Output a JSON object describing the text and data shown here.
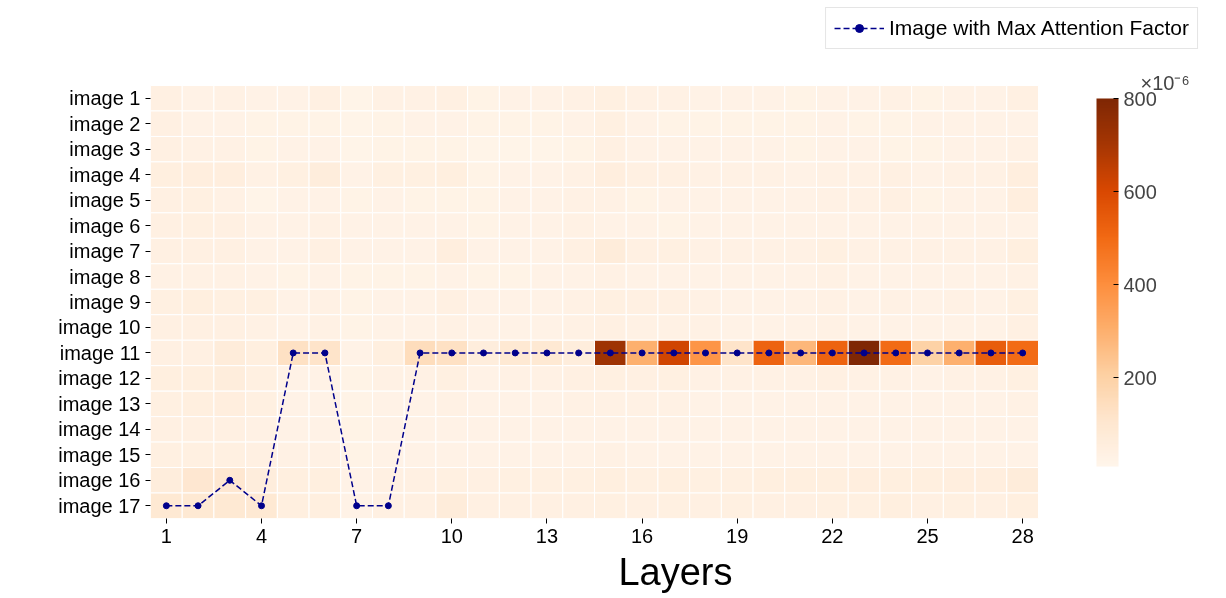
{
  "chart_data": {
    "type": "heatmap",
    "xlabel": "Layers",
    "clabel": "×10⁻⁶",
    "categories": [
      "1",
      null,
      null,
      "4",
      null,
      null,
      "7",
      null,
      null,
      "10",
      null,
      null,
      "13",
      null,
      null,
      "16",
      null,
      null,
      "19",
      null,
      null,
      "22",
      null,
      null,
      "25",
      null,
      null,
      "28"
    ],
    "y_categories": [
      "image 1",
      "image 2",
      "image 3",
      "image 4",
      "image 5",
      "image 6",
      "image 7",
      "image 8",
      "image 9",
      "image 10",
      "image 11",
      "image 12",
      "image 13",
      "image 14",
      "image 15",
      "image 16",
      "image 17"
    ],
    "cells": [
      [
        40,
        30,
        35,
        30,
        30,
        40,
        20,
        35,
        35,
        40,
        25,
        30,
        30,
        35,
        45,
        35,
        35,
        30,
        30,
        30,
        25,
        30,
        30,
        35,
        25,
        30,
        30,
        40
      ],
      [
        40,
        30,
        30,
        25,
        25,
        25,
        20,
        25,
        30,
        30,
        25,
        25,
        25,
        30,
        45,
        30,
        25,
        25,
        25,
        25,
        25,
        30,
        25,
        25,
        30,
        30,
        30,
        30
      ],
      [
        40,
        35,
        35,
        25,
        30,
        30,
        20,
        25,
        25,
        25,
        20,
        20,
        20,
        25,
        40,
        30,
        30,
        30,
        30,
        30,
        25,
        30,
        30,
        25,
        25,
        30,
        30,
        35
      ],
      [
        50,
        55,
        55,
        35,
        45,
        60,
        30,
        45,
        45,
        50,
        25,
        30,
        30,
        35,
        55,
        40,
        40,
        35,
        35,
        35,
        30,
        35,
        35,
        40,
        30,
        35,
        35,
        55
      ],
      [
        40,
        45,
        35,
        20,
        30,
        30,
        25,
        30,
        25,
        25,
        25,
        30,
        30,
        35,
        35,
        25,
        30,
        30,
        30,
        30,
        30,
        35,
        35,
        40,
        25,
        30,
        30,
        55
      ],
      [
        40,
        45,
        40,
        30,
        30,
        35,
        30,
        30,
        30,
        30,
        25,
        30,
        30,
        35,
        30,
        30,
        25,
        30,
        30,
        30,
        30,
        30,
        30,
        30,
        30,
        30,
        30,
        30
      ],
      [
        40,
        40,
        40,
        30,
        30,
        40,
        30,
        30,
        30,
        55,
        30,
        30,
        30,
        40,
        70,
        40,
        45,
        35,
        35,
        35,
        35,
        45,
        35,
        35,
        35,
        35,
        35,
        50
      ],
      [
        35,
        35,
        35,
        30,
        25,
        30,
        25,
        25,
        25,
        30,
        25,
        25,
        30,
        30,
        35,
        30,
        30,
        30,
        30,
        30,
        30,
        35,
        30,
        30,
        30,
        30,
        30,
        35
      ],
      [
        45,
        50,
        45,
        45,
        30,
        35,
        25,
        30,
        30,
        40,
        30,
        30,
        30,
        35,
        45,
        40,
        40,
        35,
        30,
        30,
        30,
        35,
        30,
        35,
        30,
        35,
        30,
        45
      ],
      [
        40,
        40,
        40,
        35,
        30,
        35,
        25,
        30,
        30,
        35,
        30,
        30,
        30,
        35,
        40,
        35,
        35,
        35,
        30,
        30,
        30,
        35,
        30,
        30,
        30,
        30,
        30,
        40
      ],
      [
        40,
        40,
        70,
        50,
        130,
        120,
        30,
        50,
        150,
        130,
        60,
        90,
        90,
        60,
        720,
        300,
        620,
        380,
        120,
        520,
        280,
        520,
        800,
        500,
        200,
        300,
        540,
        500
      ],
      [
        50,
        50,
        60,
        45,
        30,
        30,
        25,
        35,
        35,
        45,
        30,
        35,
        35,
        40,
        45,
        40,
        45,
        35,
        35,
        35,
        35,
        40,
        35,
        35,
        30,
        35,
        35,
        45
      ],
      [
        45,
        50,
        55,
        45,
        30,
        30,
        25,
        30,
        30,
        35,
        30,
        30,
        30,
        35,
        35,
        35,
        35,
        30,
        30,
        30,
        30,
        30,
        30,
        30,
        30,
        30,
        30,
        35
      ],
      [
        40,
        40,
        40,
        35,
        30,
        30,
        25,
        30,
        30,
        30,
        30,
        30,
        30,
        30,
        30,
        30,
        30,
        30,
        30,
        30,
        30,
        30,
        30,
        30,
        30,
        30,
        30,
        30
      ],
      [
        45,
        45,
        45,
        40,
        35,
        35,
        25,
        30,
        30,
        30,
        30,
        30,
        30,
        30,
        35,
        30,
        30,
        30,
        30,
        30,
        30,
        30,
        30,
        30,
        30,
        30,
        30,
        30
      ],
      [
        60,
        100,
        100,
        60,
        50,
        50,
        30,
        40,
        40,
        45,
        40,
        45,
        45,
        45,
        50,
        45,
        50,
        45,
        45,
        50,
        50,
        50,
        55,
        50,
        50,
        55,
        55,
        70
      ],
      [
        90,
        90,
        90,
        90,
        50,
        50,
        30,
        40,
        40,
        70,
        40,
        40,
        40,
        40,
        45,
        40,
        45,
        40,
        45,
        40,
        40,
        45,
        45,
        50,
        40,
        45,
        40,
        50
      ]
    ],
    "clim": [
      9,
      800
    ],
    "cticks": [
      200,
      400,
      600,
      800
    ],
    "series": [
      {
        "name": "Image with Max Attention Factor",
        "type": "line",
        "color": "#00008b",
        "values": [
          16,
          16,
          15,
          16,
          10,
          10,
          16,
          16,
          10,
          10,
          10,
          10,
          10,
          10,
          10,
          10,
          10,
          10,
          10,
          10,
          10,
          10,
          10,
          10,
          10,
          10,
          10,
          10
        ]
      }
    ],
    "marker": "circle",
    "line_style": "dashed",
    "legend": "top right"
  }
}
